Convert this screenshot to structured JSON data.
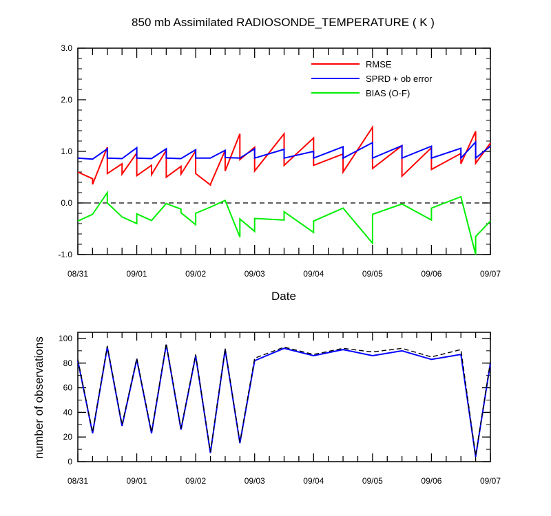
{
  "chart_data": [
    {
      "type": "line",
      "title": "850 mb Assimilated RADIOSONDE_TEMPERATURE ( K )",
      "xlabel": "Date",
      "ylabel": "",
      "xlim": [
        0,
        7
      ],
      "ylim": [
        -1.0,
        3.0
      ],
      "yticks": [
        "-1.0",
        "0.0",
        "1.0",
        "2.0",
        "3.0"
      ],
      "xtick_labels": [
        "08/31",
        "09/01",
        "09/02",
        "09/03",
        "09/04",
        "09/05",
        "09/06",
        "09/07"
      ],
      "zero_line": true,
      "legend": "top-right",
      "colors": {
        "RMSE": "#ff0000",
        "SPRD + ob error": "#0000ff",
        "BIAS (O-F)": "#00ee00"
      },
      "series": [
        {
          "name": "RMSE",
          "x": [
            0,
            0.25,
            0.25,
            0.5,
            0.5,
            0.75,
            0.75,
            1.0,
            1.0,
            1.25,
            1.25,
            1.5,
            1.5,
            1.75,
            1.75,
            2.0,
            2.0,
            2.25,
            2.25,
            2.5,
            2.5,
            2.75,
            2.75,
            3.0,
            3.0,
            3.5,
            3.5,
            4.0,
            4.0,
            4.5,
            4.5,
            5.0,
            5.0,
            5.5,
            5.5,
            6.0,
            6.0,
            6.5,
            6.5,
            6.75,
            6.75,
            7.0
          ],
          "y": [
            0.6,
            0.47,
            0.36,
            1.08,
            0.57,
            0.76,
            0.56,
            0.97,
            0.53,
            0.73,
            0.55,
            1.02,
            0.5,
            0.71,
            0.56,
            1.01,
            0.57,
            0.35,
            0.36,
            1.02,
            0.62,
            1.34,
            0.84,
            1.08,
            0.62,
            1.34,
            0.73,
            1.26,
            0.73,
            0.95,
            0.6,
            1.47,
            0.67,
            1.11,
            0.52,
            1.07,
            0.65,
            0.96,
            0.76,
            1.39,
            0.77,
            1.16
          ]
        },
        {
          "name": "SPRD + ob error",
          "x": [
            0,
            0.25,
            0.5,
            0.5,
            0.75,
            1.0,
            1.0,
            1.25,
            1.5,
            1.5,
            1.75,
            2.0,
            2.0,
            2.25,
            2.5,
            2.5,
            2.75,
            3.0,
            3.0,
            3.5,
            3.5,
            4.0,
            4.0,
            4.5,
            4.5,
            5.0,
            5.0,
            5.5,
            5.5,
            6.0,
            6.0,
            6.5,
            6.5,
            6.75,
            6.75,
            7.0
          ],
          "y": [
            0.87,
            0.85,
            1.05,
            0.87,
            0.86,
            1.07,
            0.87,
            0.86,
            1.05,
            0.87,
            0.86,
            1.03,
            0.87,
            0.87,
            1.02,
            0.88,
            0.87,
            1.05,
            0.87,
            1.04,
            0.87,
            1.0,
            0.87,
            1.09,
            0.87,
            1.17,
            0.87,
            1.11,
            0.87,
            1.1,
            0.87,
            1.06,
            0.87,
            1.18,
            0.87,
            1.1
          ]
        },
        {
          "name": "BIAS (O-F)",
          "x": [
            0,
            0.25,
            0.5,
            0.5,
            0.75,
            1.0,
            1.0,
            1.25,
            1.5,
            1.75,
            1.75,
            2.0,
            2.0,
            2.25,
            2.5,
            2.75,
            2.75,
            3.0,
            3.0,
            3.5,
            3.5,
            4.0,
            4.0,
            4.5,
            5.0,
            5.0,
            5.5,
            6.0,
            6.0,
            6.5,
            6.75,
            6.75,
            7.0
          ],
          "y": [
            -0.35,
            -0.22,
            0.2,
            0.0,
            -0.27,
            -0.4,
            -0.21,
            -0.34,
            -0.01,
            -0.12,
            -0.19,
            -0.42,
            -0.2,
            -0.08,
            0.05,
            -0.66,
            -0.31,
            -0.55,
            -0.3,
            -0.33,
            -0.17,
            -0.57,
            -0.35,
            -0.1,
            -0.78,
            -0.22,
            -0.02,
            -0.33,
            -0.1,
            0.12,
            -1.0,
            -0.65,
            -0.35
          ]
        }
      ]
    },
    {
      "type": "line",
      "title": "",
      "xlabel": "",
      "ylabel": "number of observations",
      "xlim": [
        0,
        7
      ],
      "ylim": [
        0,
        105
      ],
      "yticks": [
        "0",
        "20",
        "40",
        "60",
        "80",
        "100"
      ],
      "xtick_labels": [
        "08/31",
        "09/01",
        "09/02",
        "09/03",
        "09/04",
        "09/05",
        "09/06",
        "09/07"
      ],
      "colors": {
        "used": "#0000ff",
        "possible": "#000000"
      },
      "series": [
        {
          "style": "solid",
          "x": [
            0,
            0.25,
            0.5,
            0.75,
            1.0,
            1.25,
            1.5,
            1.75,
            2.0,
            2.25,
            2.5,
            2.75,
            3.0,
            3.5,
            4.0,
            4.5,
            5.0,
            5.5,
            6.0,
            6.5,
            6.75,
            7.0
          ],
          "y": [
            82,
            23,
            93,
            29,
            83,
            23,
            95,
            26,
            86,
            7,
            91,
            15,
            82,
            92,
            86,
            91,
            86,
            90,
            83,
            87,
            4,
            80
          ]
        },
        {
          "style": "dashed",
          "x": [
            0,
            0.25,
            0.5,
            0.75,
            1.0,
            1.25,
            1.5,
            1.75,
            2.0,
            2.25,
            2.5,
            2.75,
            3.0,
            3.5,
            4.0,
            4.5,
            5.0,
            5.5,
            6.0,
            6.5,
            6.75,
            7.0
          ],
          "y": [
            83,
            24,
            94,
            30,
            84,
            24,
            96,
            27,
            87,
            8,
            92,
            16,
            84,
            93,
            87,
            92,
            89,
            92,
            85,
            91,
            5,
            81
          ]
        }
      ]
    }
  ]
}
